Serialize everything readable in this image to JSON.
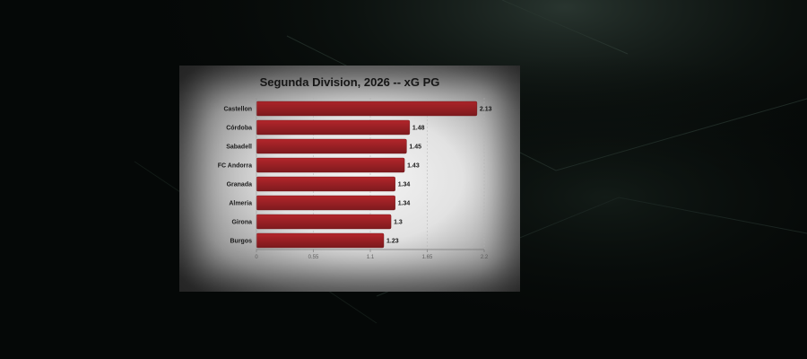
{
  "chart_data": {
    "type": "bar",
    "orientation": "horizontal",
    "title": "Segunda Division, 2026 -- xG PG",
    "categories": [
      "Castellon",
      "Córdoba",
      "Sabadell",
      "FC Andorra",
      "Granada",
      "Almeria",
      "Girona",
      "Burgos"
    ],
    "values": [
      2.13,
      1.48,
      1.45,
      1.43,
      1.34,
      1.34,
      1.3,
      1.23
    ],
    "value_labels": [
      "2.13",
      "1.48",
      "1.45",
      "1.43",
      "1.34",
      "1.34",
      "1.3",
      "1.23"
    ],
    "xlim": [
      0,
      2.2
    ],
    "xticks": [
      0,
      0.55,
      1.1,
      1.65,
      2.2
    ],
    "xtick_labels": [
      "0",
      "0.55",
      "1.1",
      "1.65",
      "2.2"
    ],
    "xlabel": "",
    "ylabel": "",
    "grid": true,
    "bar_color": "#b3262b",
    "bar_color_dark": "#7e1a1e"
  }
}
